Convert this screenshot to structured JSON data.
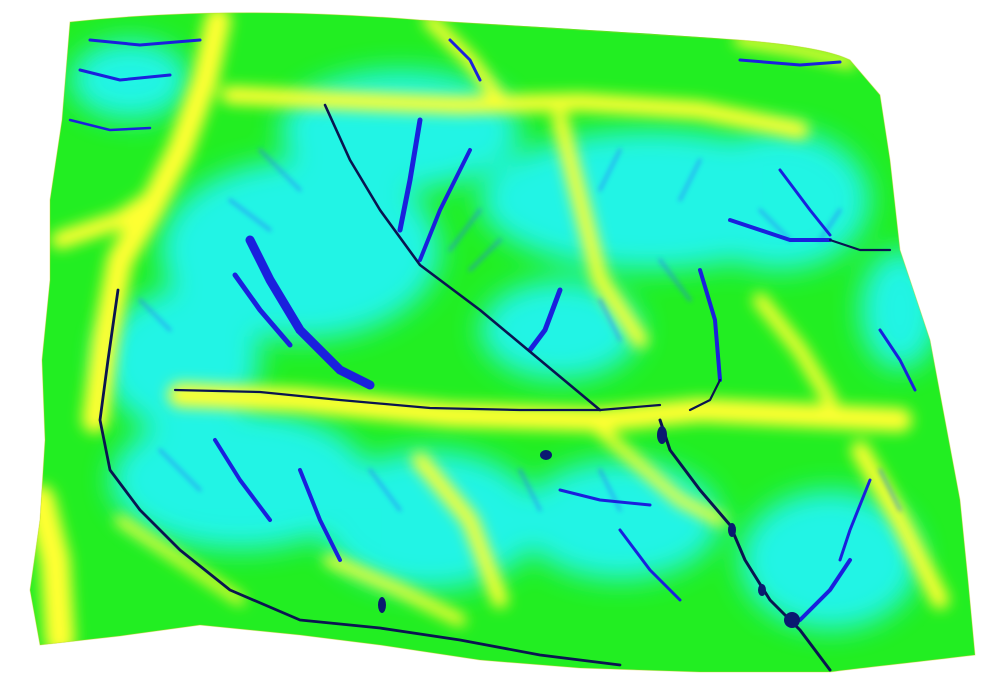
{
  "scene": {
    "background": "#ffffff",
    "palette": {
      "ridge": "#ffff00",
      "high_slope": "#00ff00",
      "mid_slope": "#00ffff",
      "channel": "#0000cc",
      "deep_channel": "#00008b",
      "main_stream": "#001a33"
    }
  }
}
